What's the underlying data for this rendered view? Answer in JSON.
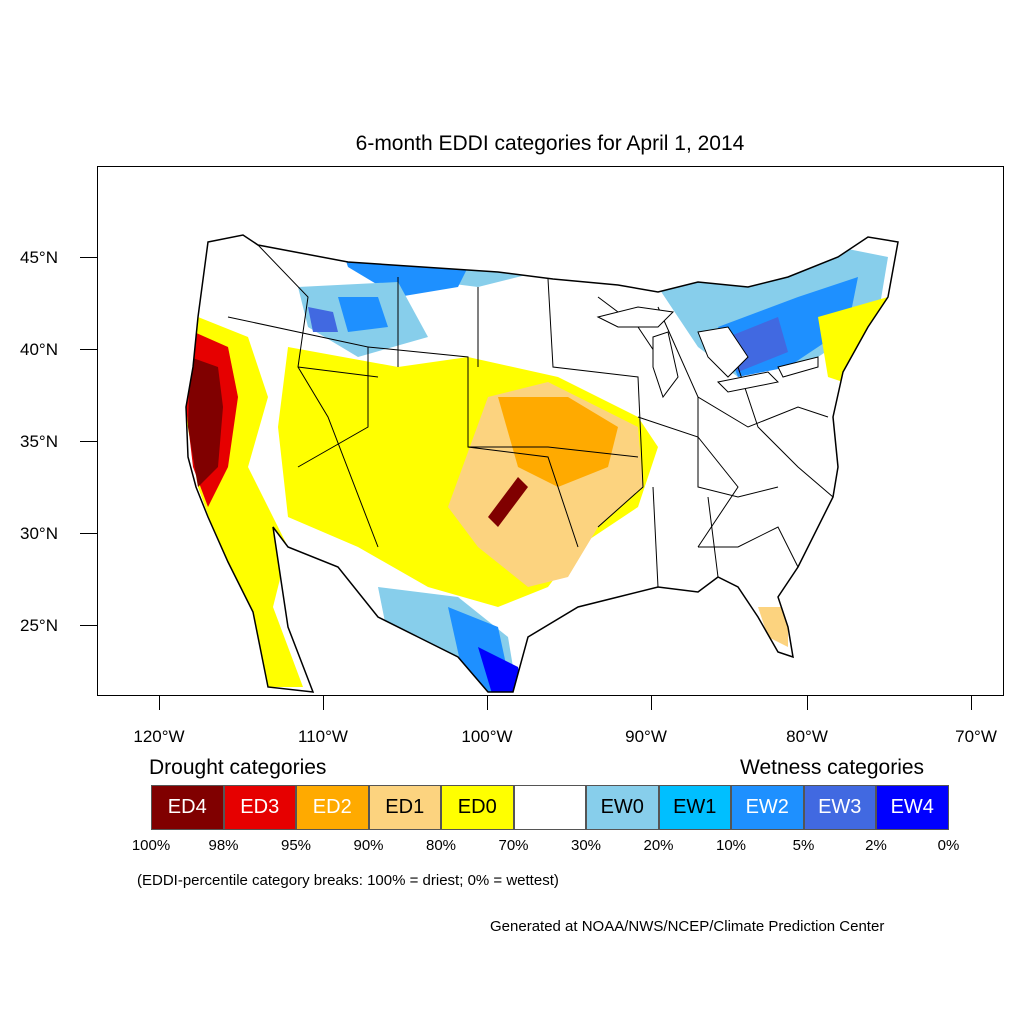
{
  "title": "6-month EDDI categories for April 1, 2014",
  "map": {
    "lat_labels": [
      "45°N",
      "40°N",
      "35°N",
      "30°N",
      "25°N"
    ],
    "lon_labels": [
      "120°W",
      "110°W",
      "100°W",
      "90°W",
      "80°W",
      "70°W"
    ]
  },
  "legend": {
    "drought_heading": "Drought categories",
    "wetness_heading": "Wetness categories",
    "categories": [
      {
        "label": "ED4",
        "color": "#800000",
        "text_color": "#ffffff"
      },
      {
        "label": "ED3",
        "color": "#e60000",
        "text_color": "#ffffff"
      },
      {
        "label": "ED2",
        "color": "#ffaa00",
        "text_color": "#ffffff"
      },
      {
        "label": "ED1",
        "color": "#fcd37f",
        "text_color": "#000000"
      },
      {
        "label": "ED0",
        "color": "#ffff00",
        "text_color": "#000000"
      },
      {
        "label": "",
        "color": "#ffffff",
        "text_color": "#000000"
      },
      {
        "label": "EW0",
        "color": "#87ceeb",
        "text_color": "#000000"
      },
      {
        "label": "EW1",
        "color": "#00bfff",
        "text_color": "#000000"
      },
      {
        "label": "EW2",
        "color": "#1e90ff",
        "text_color": "#ffffff"
      },
      {
        "label": "EW3",
        "color": "#4169e1",
        "text_color": "#ffffff"
      },
      {
        "label": "EW4",
        "color": "#0000ff",
        "text_color": "#ffffff"
      }
    ],
    "percent_breaks": [
      "100%",
      "98%",
      "95%",
      "90%",
      "80%",
      "70%",
      "30%",
      "20%",
      "10%",
      "5%",
      "2%",
      "0%"
    ]
  },
  "note": "(EDDI-percentile category breaks: 100% = driest; 0% = wettest)",
  "credit": "Generated at NOAA/NWS/NCEP/Climate Prediction Center"
}
